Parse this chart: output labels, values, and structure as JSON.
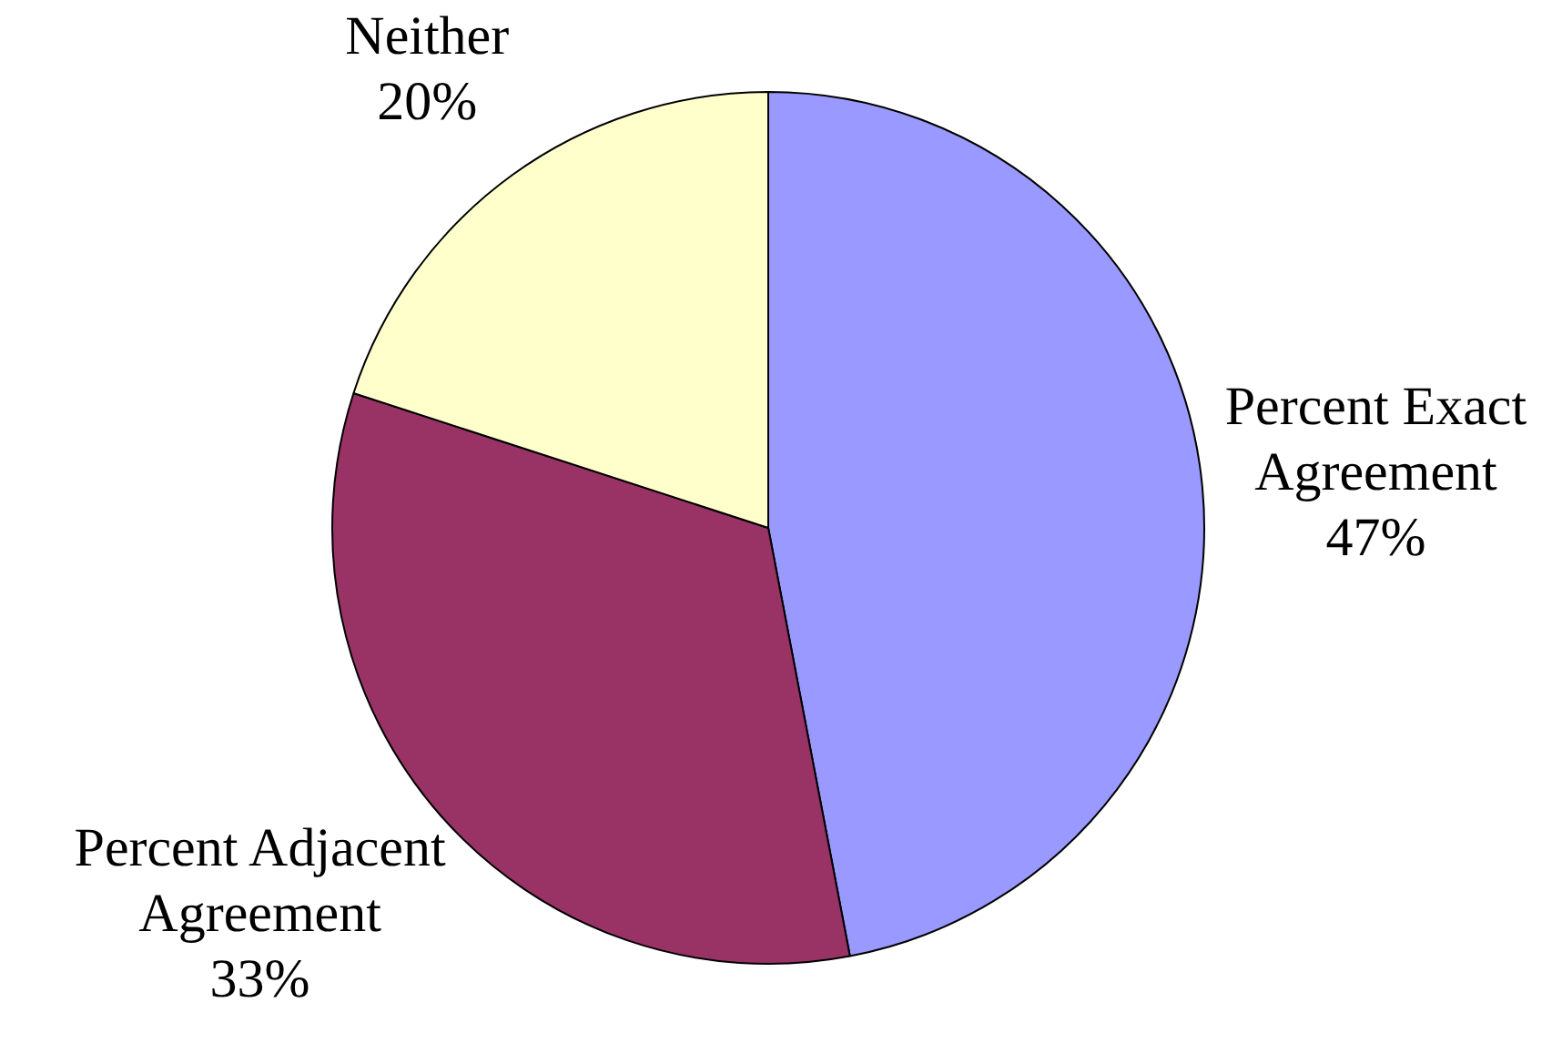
{
  "chart_data": {
    "type": "pie",
    "categories": [
      "Percent Exact Agreement",
      "Percent Adjacent Agreement",
      "Neither"
    ],
    "values": [
      47,
      33,
      20
    ],
    "colors": [
      "#9999ff",
      "#993366",
      "#ffffcc"
    ],
    "value_labels": [
      "47%",
      "33%",
      "20%"
    ]
  }
}
